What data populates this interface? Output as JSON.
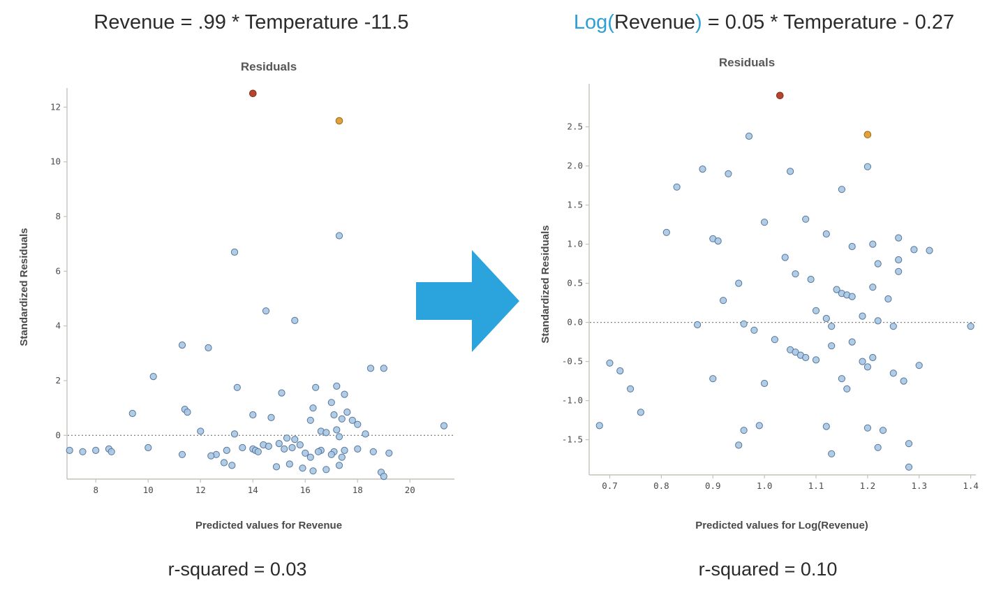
{
  "equations": {
    "left": "Revenue = .99 * Temperature -11.5",
    "right": {
      "part1": "Log(",
      "part2": "Revenue",
      "part3": ")",
      "part4": " = 0.05 * Temperature - 0.27"
    }
  },
  "arrow": {
    "direction": "right",
    "color": "#2BA3DC"
  },
  "colors": {
    "accent_blue": "#2E9FD6",
    "point_fill": "#A9C7E2",
    "point_stroke": "#55759E",
    "outlier_red": "#B9442E",
    "outlier_orange": "#E2A13C",
    "axis": "#C6C1B8",
    "zero_line": "#808080"
  },
  "chart_data": [
    {
      "type": "scatter",
      "title": "Residuals",
      "xlabel": "Predicted values for Revenue",
      "ylabel": "Standardized Residuals",
      "r_squared_label": "r-squared = 0.03",
      "xlim": [
        6.9,
        21.7
      ],
      "ylim": [
        -1.6,
        12.7
      ],
      "xticks": [
        8,
        10,
        12,
        14,
        16,
        18,
        20
      ],
      "xtick_labels": [
        "8",
        "10",
        "12",
        "14",
        "16",
        "18",
        "20"
      ],
      "yticks": [
        0,
        2,
        4,
        6,
        8,
        10,
        12
      ],
      "ytick_labels": [
        "0",
        "2",
        "4",
        "6",
        "8",
        "10",
        "12"
      ],
      "zero_line": true,
      "legend": "none",
      "grid": false,
      "points": [
        [
          17.3,
          7.3
        ],
        [
          13.3,
          6.7
        ],
        [
          14.5,
          4.55
        ],
        [
          15.6,
          4.2
        ],
        [
          11.3,
          3.3
        ],
        [
          12.3,
          3.2
        ],
        [
          10.2,
          2.15
        ],
        [
          18.5,
          2.45
        ],
        [
          19.0,
          2.45
        ],
        [
          13.4,
          1.75
        ],
        [
          16.4,
          1.75
        ],
        [
          17.2,
          1.8
        ],
        [
          15.1,
          1.55
        ],
        [
          17.5,
          1.5
        ],
        [
          17.0,
          1.2
        ],
        [
          16.3,
          1.0
        ],
        [
          11.4,
          0.95
        ],
        [
          11.5,
          0.85
        ],
        [
          9.4,
          0.8
        ],
        [
          14.0,
          0.75
        ],
        [
          17.1,
          0.75
        ],
        [
          17.6,
          0.85
        ],
        [
          14.7,
          0.65
        ],
        [
          17.4,
          0.6
        ],
        [
          16.2,
          0.55
        ],
        [
          17.8,
          0.55
        ],
        [
          18.0,
          0.4
        ],
        [
          21.3,
          0.35
        ],
        [
          12.0,
          0.15
        ],
        [
          16.6,
          0.15
        ],
        [
          17.2,
          0.2
        ],
        [
          13.3,
          0.05
        ],
        [
          16.8,
          0.1
        ],
        [
          18.3,
          0.05
        ],
        [
          17.3,
          -0.05
        ],
        [
          15.3,
          -0.1
        ],
        [
          15.6,
          -0.15
        ],
        [
          15.0,
          -0.3
        ],
        [
          14.4,
          -0.35
        ],
        [
          15.8,
          -0.35
        ],
        [
          14.6,
          -0.4
        ],
        [
          10.0,
          -0.45
        ],
        [
          13.6,
          -0.45
        ],
        [
          15.5,
          -0.45
        ],
        [
          7.0,
          -0.55
        ],
        [
          8.0,
          -0.55
        ],
        [
          13.0,
          -0.55
        ],
        [
          14.0,
          -0.5
        ],
        [
          15.2,
          -0.5
        ],
        [
          18.0,
          -0.5
        ],
        [
          8.5,
          -0.5
        ],
        [
          14.1,
          -0.55
        ],
        [
          16.6,
          -0.55
        ],
        [
          17.5,
          -0.55
        ],
        [
          7.5,
          -0.6
        ],
        [
          8.6,
          -0.6
        ],
        [
          14.2,
          -0.6
        ],
        [
          16.5,
          -0.6
        ],
        [
          18.6,
          -0.6
        ],
        [
          17.1,
          -0.6
        ],
        [
          16.0,
          -0.65
        ],
        [
          19.2,
          -0.65
        ],
        [
          11.3,
          -0.7
        ],
        [
          12.6,
          -0.7
        ],
        [
          17.0,
          -0.7
        ],
        [
          12.4,
          -0.75
        ],
        [
          16.2,
          -0.8
        ],
        [
          17.4,
          -0.8
        ],
        [
          12.9,
          -1.0
        ],
        [
          15.4,
          -1.05
        ],
        [
          13.2,
          -1.1
        ],
        [
          17.3,
          -1.1
        ],
        [
          14.9,
          -1.15
        ],
        [
          15.9,
          -1.2
        ],
        [
          16.8,
          -1.25
        ],
        [
          16.3,
          -1.3
        ],
        [
          18.9,
          -1.35
        ],
        [
          19.0,
          -1.5
        ]
      ],
      "outliers": [
        {
          "x": 14.0,
          "y": 12.5,
          "color": "red"
        },
        {
          "x": 17.3,
          "y": 11.5,
          "color": "orange"
        }
      ]
    },
    {
      "type": "scatter",
      "title": "Residuals",
      "xlabel": "Predicted values for Log(Revenue)",
      "ylabel": "Standardized Residuals",
      "r_squared_label": "r-squared = 0.10",
      "xlim": [
        0.66,
        1.41
      ],
      "ylim": [
        -1.95,
        3.05
      ],
      "xticks": [
        0.7,
        0.8,
        0.9,
        1.0,
        1.1,
        1.2,
        1.3,
        1.4
      ],
      "xtick_labels": [
        "0.7",
        "0.8",
        "0.9",
        "1.0",
        "1.1",
        "1.2",
        "1.3",
        "1.4"
      ],
      "yticks": [
        -1.5,
        -1.0,
        -0.5,
        0.0,
        0.5,
        1.0,
        1.5,
        2.0,
        2.5
      ],
      "ytick_labels": [
        "-1.5",
        "-1.0",
        "-0.5",
        "0.0",
        "0.5",
        "1.0",
        "1.5",
        "2.0",
        "2.5"
      ],
      "zero_line": true,
      "legend": "none",
      "grid": false,
      "points": [
        [
          0.97,
          2.38
        ],
        [
          1.2,
          1.99
        ],
        [
          0.88,
          1.96
        ],
        [
          1.05,
          1.93
        ],
        [
          0.93,
          1.9
        ],
        [
          0.83,
          1.73
        ],
        [
          1.15,
          1.7
        ],
        [
          1.08,
          1.32
        ],
        [
          1.0,
          1.28
        ],
        [
          0.81,
          1.15
        ],
        [
          1.12,
          1.13
        ],
        [
          1.26,
          1.08
        ],
        [
          0.9,
          1.07
        ],
        [
          0.91,
          1.04
        ],
        [
          1.21,
          1.0
        ],
        [
          1.17,
          0.97
        ],
        [
          1.29,
          0.93
        ],
        [
          1.32,
          0.92
        ],
        [
          1.04,
          0.83
        ],
        [
          1.26,
          0.8
        ],
        [
          1.22,
          0.75
        ],
        [
          1.26,
          0.65
        ],
        [
          1.06,
          0.62
        ],
        [
          1.09,
          0.55
        ],
        [
          0.95,
          0.5
        ],
        [
          1.21,
          0.45
        ],
        [
          1.14,
          0.42
        ],
        [
          1.15,
          0.37
        ],
        [
          1.16,
          0.35
        ],
        [
          1.17,
          0.33
        ],
        [
          1.24,
          0.3
        ],
        [
          0.92,
          0.28
        ],
        [
          1.1,
          0.15
        ],
        [
          1.19,
          0.08
        ],
        [
          1.12,
          0.05
        ],
        [
          1.22,
          0.02
        ],
        [
          0.87,
          -0.03
        ],
        [
          0.96,
          -0.02
        ],
        [
          1.13,
          -0.05
        ],
        [
          1.25,
          -0.05
        ],
        [
          1.4,
          -0.05
        ],
        [
          0.98,
          -0.1
        ],
        [
          1.02,
          -0.22
        ],
        [
          1.17,
          -0.25
        ],
        [
          1.13,
          -0.3
        ],
        [
          1.05,
          -0.35
        ],
        [
          1.06,
          -0.38
        ],
        [
          1.07,
          -0.42
        ],
        [
          1.08,
          -0.45
        ],
        [
          1.1,
          -0.48
        ],
        [
          1.19,
          -0.5
        ],
        [
          0.7,
          -0.52
        ],
        [
          1.3,
          -0.55
        ],
        [
          1.2,
          -0.57
        ],
        [
          0.72,
          -0.62
        ],
        [
          1.21,
          -0.45
        ],
        [
          1.25,
          -0.65
        ],
        [
          0.9,
          -0.72
        ],
        [
          1.15,
          -0.72
        ],
        [
          1.27,
          -0.75
        ],
        [
          1.0,
          -0.78
        ],
        [
          0.74,
          -0.85
        ],
        [
          1.16,
          -0.85
        ],
        [
          0.76,
          -1.15
        ],
        [
          0.68,
          -1.32
        ],
        [
          0.99,
          -1.32
        ],
        [
          1.12,
          -1.33
        ],
        [
          0.96,
          -1.38
        ],
        [
          1.2,
          -1.35
        ],
        [
          1.23,
          -1.38
        ],
        [
          1.28,
          -1.55
        ],
        [
          0.95,
          -1.57
        ],
        [
          1.22,
          -1.6
        ],
        [
          1.13,
          -1.68
        ],
        [
          1.28,
          -1.85
        ]
      ],
      "outliers": [
        {
          "x": 1.03,
          "y": 2.9,
          "color": "red"
        },
        {
          "x": 1.2,
          "y": 2.4,
          "color": "orange"
        }
      ]
    }
  ]
}
